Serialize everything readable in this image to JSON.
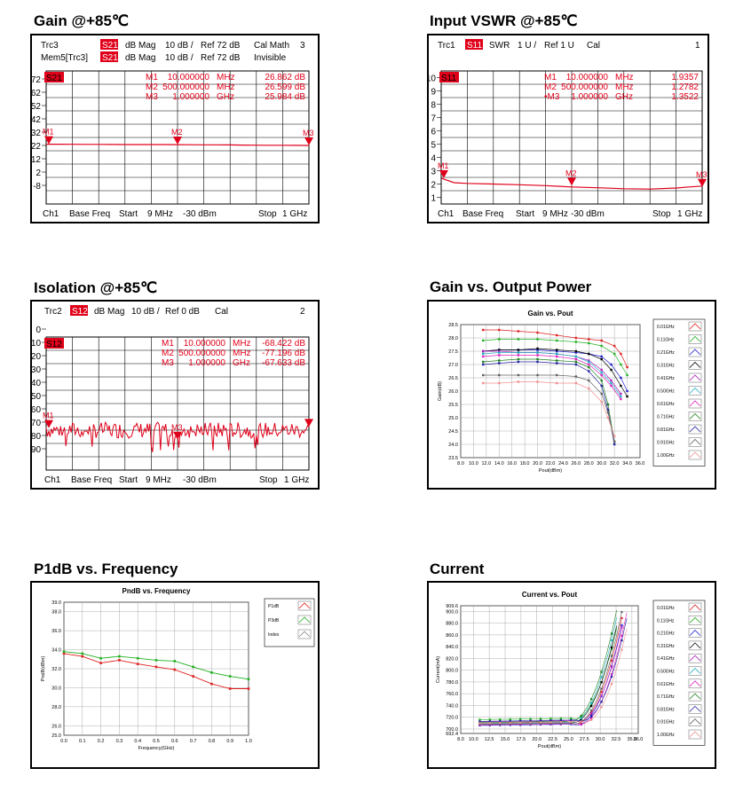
{
  "titles": {
    "gain": "Gain @+85℃",
    "vswr": "Input VSWR @+85℃",
    "iso": "Isolation @+85℃",
    "gvp": "Gain vs. Output Power",
    "p1db": "P1dB vs. Frequency",
    "cur": "Current"
  },
  "colors": {
    "trace": "#e0001a",
    "series": [
      "#e02020",
      "#20b020",
      "#2020d0",
      "#000000",
      "#b020c0",
      "#20b0c0",
      "#e020c0",
      "#208020",
      "#2020a0",
      "#606060",
      "#f09090"
    ]
  },
  "gain": {
    "hdr1": [
      "Trc3",
      "S21",
      "dB Mag",
      "10 dB /",
      "Ref 72 dB",
      "Cal Math",
      "3"
    ],
    "hdr2": [
      "Mem5[Trc3]",
      "S21",
      "dB Mag",
      "10 dB /",
      "Ref 72 dB",
      "Invisible"
    ],
    "tag": "S21",
    "markers": [
      {
        "name": "M1",
        "val": "10.000000",
        "unit": "MHz",
        "res": "26.862 dB"
      },
      {
        "name": "M2",
        "val": "500.000000",
        "unit": "MHz",
        "res": "26.599 dB"
      },
      {
        "name": "M3",
        "val": "1.000000",
        "unit": "GHz",
        "res": "25.984 dB"
      }
    ],
    "ticks": [
      "72",
      "62",
      "52",
      "42",
      "32",
      "22",
      "12",
      "2",
      "-8"
    ],
    "footer": [
      "Ch1",
      "Base Freq",
      "Start",
      "9 MHz",
      "-30 dBm",
      "Stop",
      "1 GHz"
    ],
    "mk": [
      "M1",
      "M2",
      "M3"
    ]
  },
  "vswr": {
    "hdr1": [
      "Trc1",
      "S11",
      "SWR",
      "1 U /",
      "Ref 1 U",
      "Cal",
      "1"
    ],
    "tag": "S11",
    "markers": [
      {
        "name": "M1",
        "val": "10.000000",
        "unit": "MHz",
        "res": "1.9357",
        "u": "U"
      },
      {
        "name": "M2",
        "val": "500.000000",
        "unit": "MHz",
        "res": "1.2782",
        "u": "U"
      },
      {
        "name": "•M3",
        "val": "1.000000",
        "unit": "GHz",
        "res": "1.3522",
        "u": "U"
      }
    ],
    "ticks": [
      "10",
      "9",
      "8",
      "7",
      "6",
      "5",
      "4",
      "3",
      "2",
      "1"
    ],
    "footer": [
      "Ch1",
      "Base Freq",
      "Start",
      "9 MHz",
      "-30 dBm",
      "Stop",
      "1 GHz"
    ],
    "mk": [
      "M1",
      "M2",
      "M3"
    ]
  },
  "iso": {
    "hdr1": [
      "Trc2",
      "S12",
      "dB Mag",
      "10 dB /",
      "Ref 0 dB",
      "Cal",
      "2"
    ],
    "tag": "S12",
    "markers": [
      {
        "name": "M1",
        "val": "10.000000",
        "unit": "MHz",
        "res": "-68.422 dB"
      },
      {
        "name": "M2",
        "val": "500.000000",
        "unit": "MHz",
        "res": "-77.196 dB"
      },
      {
        "name": "M3",
        "val": "1.000000",
        "unit": "GHz",
        "res": "-67.633 dB"
      }
    ],
    "ticks": [
      "0",
      "-10",
      "-20",
      "-30",
      "-40",
      "-50",
      "-60",
      "-70",
      "-80",
      "-90"
    ],
    "footer": [
      "Ch1",
      "Base Freq",
      "Start",
      "9 MHz",
      "-30 dBm",
      "Stop",
      "1 GHz"
    ],
    "mk": [
      "M1",
      "M3"
    ]
  },
  "chart_data": [
    {
      "type": "line",
      "id": "gain",
      "title": "",
      "ylim": [
        -18,
        82
      ],
      "x": [
        0,
        0.05,
        0.1,
        0.15,
        0.2,
        0.25,
        0.3,
        0.35,
        0.4,
        0.45,
        0.5,
        0.55,
        0.6,
        0.65,
        0.7,
        0.75,
        0.8,
        0.85,
        0.9,
        0.95,
        1.0
      ],
      "series": [
        {
          "values": [
            26.9,
            26.9,
            26.85,
            26.8,
            26.8,
            26.75,
            26.7,
            26.7,
            26.7,
            26.65,
            26.6,
            26.55,
            26.5,
            26.45,
            26.4,
            26.3,
            26.2,
            26.15,
            26.1,
            26.05,
            26.0
          ]
        }
      ],
      "marker_x": [
        0.01,
        0.5,
        1.0
      ]
    },
    {
      "type": "line",
      "id": "vswr",
      "title": "",
      "ylim": [
        0,
        10
      ],
      "x": [
        0,
        0.05,
        0.1,
        0.2,
        0.3,
        0.4,
        0.5,
        0.6,
        0.7,
        0.8,
        0.9,
        0.95,
        1.0
      ],
      "series": [
        {
          "values": [
            1.94,
            1.6,
            1.55,
            1.5,
            1.45,
            1.38,
            1.28,
            1.22,
            1.15,
            1.12,
            1.2,
            1.28,
            1.35
          ]
        }
      ],
      "marker_x": [
        0.01,
        0.5,
        1.0
      ]
    },
    {
      "type": "line",
      "id": "iso",
      "title": "",
      "ylim": [
        -100,
        0
      ],
      "marker_x": [
        0.01,
        0.5,
        1.0
      ],
      "marker_y": [
        -68.4,
        -77.2,
        -67.6
      ]
    },
    {
      "type": "line",
      "id": "gvp",
      "title": "Gain vs. Pout",
      "xlabel": "Pout(dBm)",
      "ylabel": "Gain(dB)",
      "xlim": [
        8,
        36
      ],
      "ylim": [
        23.5,
        28.5
      ],
      "xticks": [
        "8.0",
        "10.0",
        "12.0",
        "14.0",
        "16.0",
        "18.0",
        "20.0",
        "22.0",
        "24.0",
        "26.0",
        "28.0",
        "30.0",
        "32.0",
        "34.0",
        "36.0"
      ],
      "yticks": [
        "28.5",
        "28.0",
        "27.5",
        "27.0",
        "26.5",
        "26.0",
        "25.5",
        "25.0",
        "24.5",
        "24.0",
        "23.5"
      ],
      "legend": [
        "0.01GHz",
        "0.11GHz",
        "0.21GHz",
        "0.31GHz",
        "0.41GHz",
        "0.50GHz",
        "0.61GHz",
        "0.71GHz",
        "0.81GHz",
        "0.91GHz",
        "1.00GHz"
      ],
      "series": [
        {
          "name": "0.01GHz",
          "x": [
            11.5,
            14,
            17,
            20,
            23,
            26,
            28,
            30,
            32,
            33,
            34
          ],
          "values": [
            28.3,
            28.3,
            28.25,
            28.2,
            28.1,
            28.0,
            27.95,
            27.9,
            27.7,
            27.4,
            26.9
          ]
        },
        {
          "name": "0.11GHz",
          "x": [
            11.5,
            14,
            17,
            20,
            23,
            26,
            28,
            30,
            32,
            33,
            34
          ],
          "values": [
            27.9,
            27.95,
            27.95,
            27.95,
            27.9,
            27.85,
            27.8,
            27.7,
            27.4,
            27.0,
            26.6
          ]
        },
        {
          "name": "0.21GHz",
          "x": [
            11.5,
            14,
            17,
            20,
            23,
            26,
            28,
            30,
            31.5,
            33,
            34
          ],
          "values": [
            27.5,
            27.55,
            27.55,
            27.55,
            27.5,
            27.45,
            27.4,
            27.3,
            27.0,
            26.5,
            26.0
          ]
        },
        {
          "name": "0.31GHz",
          "x": [
            11.5,
            14,
            17,
            20,
            23,
            26,
            28,
            30,
            31.5,
            33,
            34
          ],
          "values": [
            27.5,
            27.55,
            27.55,
            27.6,
            27.55,
            27.5,
            27.4,
            27.2,
            26.8,
            26.2,
            25.8
          ]
        },
        {
          "name": "0.41GHz",
          "x": [
            11.5,
            14,
            17,
            20,
            23,
            26,
            28,
            30,
            31.5,
            33
          ],
          "values": [
            27.5,
            27.5,
            27.45,
            27.45,
            27.4,
            27.3,
            27.15,
            26.8,
            26.4,
            25.9
          ]
        },
        {
          "name": "0.50GHz",
          "x": [
            11.5,
            14,
            17,
            20,
            23,
            26,
            28,
            30,
            31.5,
            33
          ],
          "values": [
            27.4,
            27.45,
            27.45,
            27.45,
            27.4,
            27.3,
            27.1,
            26.7,
            26.3,
            25.8
          ]
        },
        {
          "name": "0.61GHz",
          "x": [
            11.5,
            14,
            17,
            20,
            23,
            26,
            28,
            30,
            31.5,
            33
          ],
          "values": [
            27.3,
            27.35,
            27.35,
            27.35,
            27.3,
            27.2,
            27.0,
            26.6,
            26.2,
            25.7
          ]
        },
        {
          "name": "0.71GHz",
          "x": [
            11.5,
            14,
            17,
            20,
            23,
            26,
            28,
            30,
            31,
            32
          ],
          "values": [
            27.1,
            27.15,
            27.2,
            27.2,
            27.15,
            27.1,
            26.9,
            26.4,
            25.5,
            24.1
          ]
        },
        {
          "name": "0.81GHz",
          "x": [
            11.5,
            14,
            17,
            20,
            23,
            26,
            28,
            30,
            31,
            32
          ],
          "values": [
            27.0,
            27.05,
            27.1,
            27.1,
            27.05,
            27.0,
            26.75,
            26.2,
            25.3,
            24.0
          ]
        },
        {
          "name": "0.91GHz",
          "x": [
            11.5,
            14,
            17,
            20,
            23,
            26,
            28,
            30,
            31,
            32
          ],
          "values": [
            26.6,
            26.6,
            26.6,
            26.6,
            26.6,
            26.55,
            26.4,
            25.9,
            25.2,
            24.1
          ]
        },
        {
          "name": "1.00GHz",
          "x": [
            11.5,
            14,
            17,
            20,
            23,
            26,
            28,
            30,
            31,
            32
          ],
          "values": [
            26.3,
            26.3,
            26.35,
            26.35,
            26.3,
            26.3,
            26.1,
            25.6,
            25.0,
            24.3
          ]
        }
      ]
    },
    {
      "type": "line",
      "id": "p1db",
      "title": "PndB vs. Frequency",
      "xlabel": "Frequency(GHz)",
      "ylabel": "PndB(dBm)",
      "xlim": [
        0,
        1
      ],
      "ylim": [
        25,
        39
      ],
      "xticks": [
        "0.0",
        "0.1",
        "0.2",
        "0.3",
        "0.4",
        "0.5",
        "0.6",
        "0.7",
        "0.8",
        "0.9",
        "1.0"
      ],
      "yticks": [
        "39.0",
        "38.0",
        "36.0",
        "34.0",
        "32.0",
        "30.0",
        "28.0",
        "26.0",
        "25.0"
      ],
      "ytickvals": [
        39,
        38,
        36,
        34,
        32,
        30,
        28,
        26,
        25
      ],
      "legend": [
        "P1dB",
        "P3dB",
        "Index"
      ],
      "x": [
        0.0,
        0.1,
        0.2,
        0.3,
        0.4,
        0.5,
        0.6,
        0.7,
        0.8,
        0.9,
        1.0
      ],
      "series": [
        {
          "name": "P1dB",
          "values": [
            33.6,
            33.3,
            32.6,
            32.9,
            32.5,
            32.2,
            31.9,
            31.2,
            30.4,
            29.9,
            29.9
          ]
        },
        {
          "name": "P3dB",
          "values": [
            33.8,
            33.6,
            33.1,
            33.3,
            33.1,
            32.9,
            32.8,
            32.2,
            31.6,
            31.2,
            30.9
          ]
        }
      ]
    },
    {
      "type": "line",
      "id": "cur",
      "title": "Current vs. Pout",
      "xlabel": "Pout(dBm)",
      "ylabel": "Current(mA)",
      "xlim": [
        8,
        36
      ],
      "ylim": [
        692.4,
        909.6
      ],
      "xticks": [
        "8.0",
        "10.0",
        "12.5",
        "15.0",
        "17.5",
        "20.0",
        "22.5",
        "25.0",
        "27.5",
        "30.0",
        "32.5",
        "35.0",
        "36.0"
      ],
      "xtickvals": [
        8,
        10,
        12.5,
        15,
        17.5,
        20,
        22.5,
        25,
        27.5,
        30,
        32.5,
        35,
        36
      ],
      "yticks": [
        "909.6",
        "900.0",
        "880.0",
        "860.0",
        "840.0",
        "820.0",
        "800.0",
        "780.0",
        "760.0",
        "740.0",
        "720.0",
        "700.0",
        "692.4"
      ],
      "ytickvals": [
        909.6,
        900,
        880,
        860,
        840,
        820,
        800,
        780,
        760,
        740,
        720,
        700,
        692.4
      ],
      "legend": [
        "0.01GHz",
        "0.11GHz",
        "0.21GHz",
        "0.31GHz",
        "0.41GHz",
        "0.50GHz",
        "0.61GHz",
        "0.71GHz",
        "0.81GHz",
        "0.91GHz",
        "1.00GHz"
      ],
      "series_shift": [
        0,
        -0.3,
        0.2,
        -0.5,
        0.4,
        -0.8,
        0.6,
        -1.0,
        0.9,
        -0.2,
        1.2
      ],
      "series_base": [
        708,
        716,
        706,
        710,
        712,
        709,
        707,
        711,
        713,
        708,
        710
      ]
    }
  ]
}
